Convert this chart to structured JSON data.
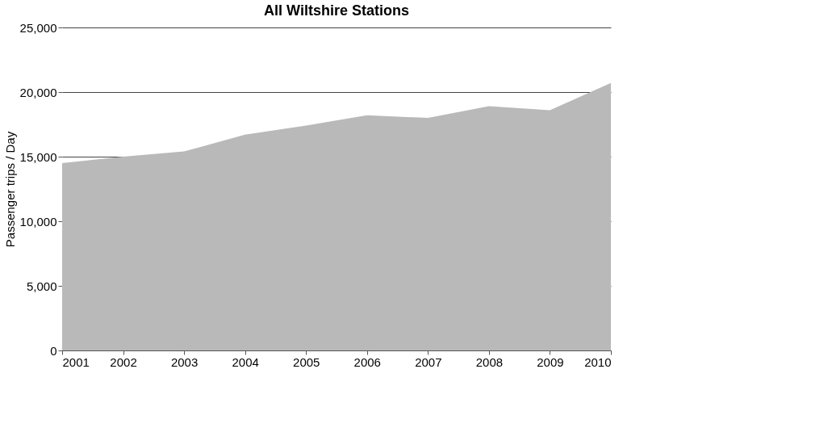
{
  "chart_data": {
    "type": "area",
    "title": "All Wiltshire Stations",
    "ylabel": "Passenger trips / Day",
    "categories": [
      "2001",
      "2002",
      "2003",
      "2004",
      "2005",
      "2006",
      "2007",
      "2008",
      "2009",
      "2010"
    ],
    "series": [
      {
        "color": "#b9b9b9",
        "values": [
          14500,
          15000,
          15400,
          16700,
          17400,
          18200,
          18000,
          18900,
          18600,
          20700
        ]
      }
    ],
    "ylim": [
      0,
      25000
    ],
    "yticks": [
      0,
      {
        "value": 5000,
        "label": "5,000"
      },
      {
        "value": 10000,
        "label": "10,000"
      },
      {
        "value": 15000,
        "label": "15,000"
      },
      {
        "value": 20000,
        "label": "20,000"
      },
      {
        "value": 25000,
        "label": "25,000"
      }
    ],
    "grid": "y"
  }
}
